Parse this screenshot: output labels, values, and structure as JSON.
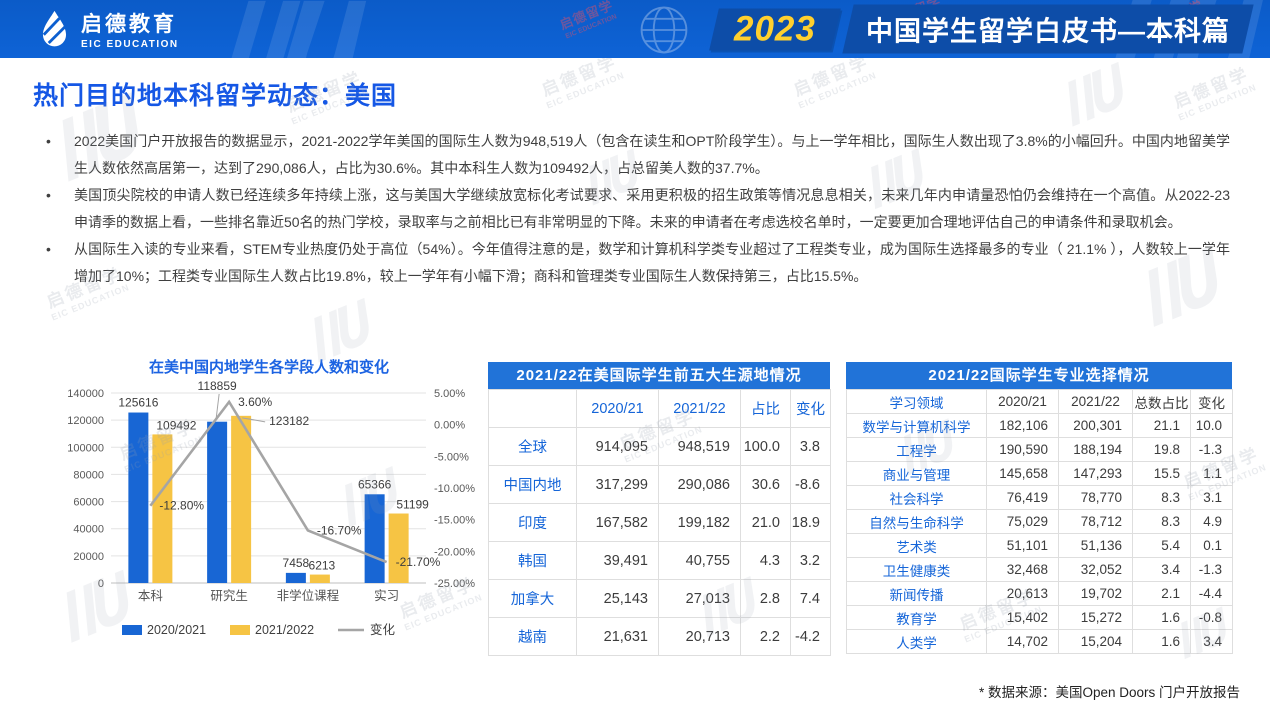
{
  "header": {
    "logo_cn": "启德教育",
    "logo_en": "EIC EDUCATION",
    "year_badge": "2023",
    "report_title": "中国学生留学白皮书—本科篇"
  },
  "page": {
    "title": "热门目的地本科留学动态：美国",
    "bullets": [
      "2022美国门户开放报告的数据显示，2021-2022学年美国的国际生人数为948,519人（包含在读生和OPT阶段学生）。与上一学年相比，国际生人数出现了3.8%的小幅回升。中国内地留美学生人数依然高居第一，达到了290,086人，占比为30.6%。其中本科生人数为109492人，占总留美人数的37.7%。",
      "美国顶尖院校的申请人数已经连续多年持续上涨，这与美国大学继续放宽标化考试要求、采用更积极的招生政策等情况息息相关，未来几年内申请量恐怕仍会维持在一个高值。从2022-23申请季的数据上看，一些排名靠近50名的热门学校，录取率与之前相比已有非常明显的下降。未来的申请者在考虑选校名单时，一定要更加合理地评估自己的申请条件和录取机会。",
      "从国际生入读的专业来看，STEM专业热度仍处于高位（54%）。今年值得注意的是，数学和计算机科学类专业超过了工程类专业，成为国际生选择最多的专业（ 21.1% ），人数较上一学年增加了10%；工程类专业国际生人数占比19.8%，较上一学年有小幅下滑；商科和管理类专业国际生人数保持第三，占比15.5%。"
    ],
    "footnote": "* 数据来源：美国Open Doors 门户开放报告"
  },
  "watermark": {
    "cn": "启德留学",
    "en": "EIC EDUCATION"
  },
  "colors": {
    "header_bg": "#0C5FD0",
    "plate_bg": "#0D4DA8",
    "year_yellow": "#FFD02E",
    "accent_blue": "#1565D8",
    "table_header_bg": "#2173D8",
    "bar_blue": "#1866D4",
    "bar_yellow": "#F6C444",
    "line_gray": "#A5A5A5"
  },
  "chart_data": {
    "type": "bar",
    "subtype": "bar+line combo, dual axis",
    "title": "在美中国内地学生各学段人数和变化",
    "categories": [
      "本科",
      "研究生",
      "非学位课程",
      "实习"
    ],
    "series": [
      {
        "name": "2020/2021",
        "type": "bar",
        "color": "#1866D4",
        "values": [
          125616,
          118859,
          7458,
          65366
        ]
      },
      {
        "name": "2021/2022",
        "type": "bar",
        "color": "#F6C444",
        "values": [
          109492,
          123182,
          6213,
          51199
        ]
      },
      {
        "name": "变化",
        "type": "line",
        "color": "#A5A5A5",
        "values": [
          -12.8,
          3.6,
          -16.7,
          -21.7
        ],
        "labels": [
          "-12.80%",
          "3.60%",
          "-16.70%",
          "-21.70%"
        ]
      }
    ],
    "left_axis": {
      "min": 0,
      "max": 140000,
      "step": 20000
    },
    "right_axis": {
      "min": -25,
      "max": 5,
      "step": 5,
      "suffix": "%"
    },
    "legend_position": "bottom",
    "grid": true
  },
  "source_table": {
    "title": "2021/22在美国际学生前五大生源地情况",
    "columns": [
      "",
      "2020/21",
      "2021/22",
      "占比",
      "变化"
    ],
    "rows": [
      [
        "全球",
        "914,095",
        "948,519",
        "100.0",
        "3.8"
      ],
      [
        "中国内地",
        "317,299",
        "290,086",
        "30.6",
        "-8.6"
      ],
      [
        "印度",
        "167,582",
        "199,182",
        "21.0",
        "18.9"
      ],
      [
        "韩国",
        "39,491",
        "40,755",
        "4.3",
        "3.2"
      ],
      [
        "加拿大",
        "25,143",
        "27,013",
        "2.8",
        "7.4"
      ],
      [
        "越南",
        "21,631",
        "20,713",
        "2.2",
        "-4.2"
      ]
    ]
  },
  "major_table": {
    "title": "2021/22国际学生专业选择情况",
    "columns": [
      "学习领域",
      "2020/21",
      "2021/22",
      "总数占比",
      "变化"
    ],
    "rows": [
      [
        "数学与计算机科学",
        "182,106",
        "200,301",
        "21.1",
        "10.0"
      ],
      [
        "工程学",
        "190,590",
        "188,194",
        "19.8",
        "-1.3"
      ],
      [
        "商业与管理",
        "145,658",
        "147,293",
        "15.5",
        "1.1"
      ],
      [
        "社会科学",
        "76,419",
        "78,770",
        "8.3",
        "3.1"
      ],
      [
        "自然与生命科学",
        "75,029",
        "78,712",
        "8.3",
        "4.9"
      ],
      [
        "艺术类",
        "51,101",
        "51,136",
        "5.4",
        "0.1"
      ],
      [
        "卫生健康类",
        "32,468",
        "32,052",
        "3.4",
        "-1.3"
      ],
      [
        "新闻传播",
        "20,613",
        "19,702",
        "2.1",
        "-4.4"
      ],
      [
        "教育学",
        "15,402",
        "15,272",
        "1.6",
        "-0.8"
      ],
      [
        "人类学",
        "14,702",
        "15,204",
        "1.6",
        "3.4"
      ]
    ]
  }
}
